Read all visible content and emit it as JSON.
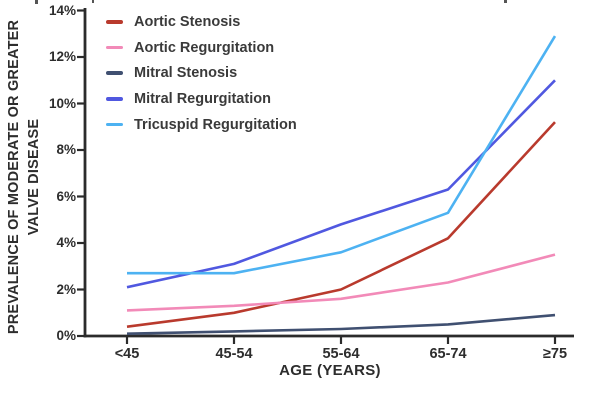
{
  "chart_data": {
    "type": "line",
    "title": "",
    "x_label": "AGE (YEARS)",
    "y_label": "PREVALENCE OF MODERATE OR GREATER VALVE DISEASE",
    "y_label_lines": [
      "PREVALENCE OF MODERATE OR GREATER",
      "VALVE DISEASE"
    ],
    "categories": [
      "<45",
      "45-54",
      "55-64",
      "65-74",
      "≥75"
    ],
    "ylim": [
      0,
      14
    ],
    "y_tick_step": 2,
    "y_tick_labels": [
      "0%",
      "2%",
      "4%",
      "6%",
      "8%",
      "10%",
      "12%",
      "14%"
    ],
    "grid": false,
    "legend_position": "top-left-inside",
    "axis_color": "#2b2b2b",
    "series": [
      {
        "name": "Aortic Stenosis",
        "color": "#b93a2d",
        "values": [
          0.4,
          1.0,
          2.0,
          4.2,
          9.2
        ]
      },
      {
        "name": "Aortic Regurgitation",
        "color": "#f28ab8",
        "values": [
          1.1,
          1.3,
          1.6,
          2.3,
          3.5
        ]
      },
      {
        "name": "Mitral Stenosis",
        "color": "#405071",
        "values": [
          0.1,
          0.2,
          0.3,
          0.5,
          0.9
        ]
      },
      {
        "name": "Mitral Regurgitation",
        "color": "#5058e0",
        "values": [
          2.1,
          3.1,
          4.8,
          6.3,
          11.0
        ]
      },
      {
        "name": "Tricuspid Regurgitation",
        "color": "#4db2f2",
        "values": [
          2.7,
          2.7,
          3.6,
          5.3,
          12.9
        ]
      }
    ]
  }
}
